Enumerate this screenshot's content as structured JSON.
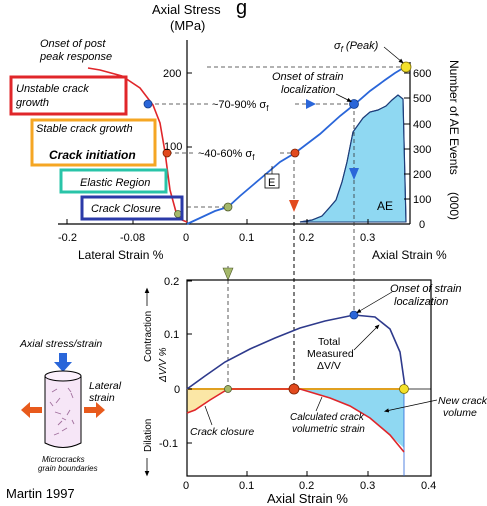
{
  "top_panel": {
    "title_partial": "g",
    "y_label_line1": "Axial Stress",
    "y_label_line2": "(MPa)",
    "y_ticks": [
      "200",
      "100"
    ],
    "x_ticks": [
      "-0.2",
      "-0.08",
      "0",
      "0.1",
      "0.2",
      "0.3"
    ],
    "lateral_strain_label": "Lateral Strain %",
    "axial_strain_label": "Axial Strain %",
    "right_axis_line1": "Number of AE Events",
    "right_axis_line2": "(000)",
    "right_ticks": [
      "600",
      "500",
      "400",
      "300",
      "200",
      "100",
      "0"
    ],
    "onset_post_peak_line1": "Onset of post",
    "onset_post_peak_line2": "peak response",
    "peak_sigma": "σ",
    "peak_sub": "f",
    "peak_text": " (Peak)",
    "onset_strain_loc_line1": "Onset of strain",
    "onset_strain_loc_line2": "localization",
    "pct_70_90": "~70-90% σ",
    "pct_70_90_sub": "f",
    "pct_40_60": "~40-60% σ",
    "pct_40_60_sub": "f",
    "e_label": "E",
    "ae_label": "AE"
  },
  "stage_boxes": [
    {
      "line1": "Unstable crack",
      "line2": "growth",
      "color": "#e0262a"
    },
    {
      "line1": "Stable crack growth",
      "line2": "",
      "color": "#f5a623"
    },
    {
      "line1": "Crack initiation",
      "line2": "",
      "color": "#f5a623"
    },
    {
      "line1": "Elastic Region",
      "line2": "",
      "color": "#29c4a8"
    },
    {
      "line1": "Crack Closure",
      "line2": "",
      "color": "#2b3aa8"
    }
  ],
  "bottom_panel": {
    "y_ticks": [
      "0.2",
      "0.1",
      "0",
      "-0.1"
    ],
    "y_label": "ΔV/V %",
    "contraction_label": "Contraction",
    "dilation_label": "Dilation",
    "x_ticks": [
      "0",
      "0.1",
      "0.2",
      "0.3",
      "0.4"
    ],
    "x_label": "Axial Strain %",
    "onset_line1": "Onset of strain",
    "onset_line2": "localization",
    "total_line1": "Total",
    "total_line2": "Measured",
    "total_line3": "ΔV/V",
    "new_crack_line1": "New crack",
    "new_crack_line2": "volume",
    "crack_closure_label": "Crack closure",
    "calc_line1": "Calculated crack",
    "calc_line2": "volumetric strain"
  },
  "specimen": {
    "axial_line": "Axial stress/strain",
    "lateral_line1": "Lateral",
    "lateral_line2": "strain",
    "micro_line1": "Microcracks",
    "micro_line2": "grain boundaries"
  },
  "citation": "Martin 1997",
  "colors": {
    "stress_curve": "#2a66d9",
    "lateral_curve": "#e0262a",
    "ae_fill": "#8fd8f2",
    "crack_closure_fill": "#fbe7a6",
    "peak_point": "#f3e12a",
    "blue_point": "#2a66d9",
    "red_point": "#e24a1e",
    "green_point": "#a4b86a",
    "volumetric_curve": "#2e3a8c"
  }
}
